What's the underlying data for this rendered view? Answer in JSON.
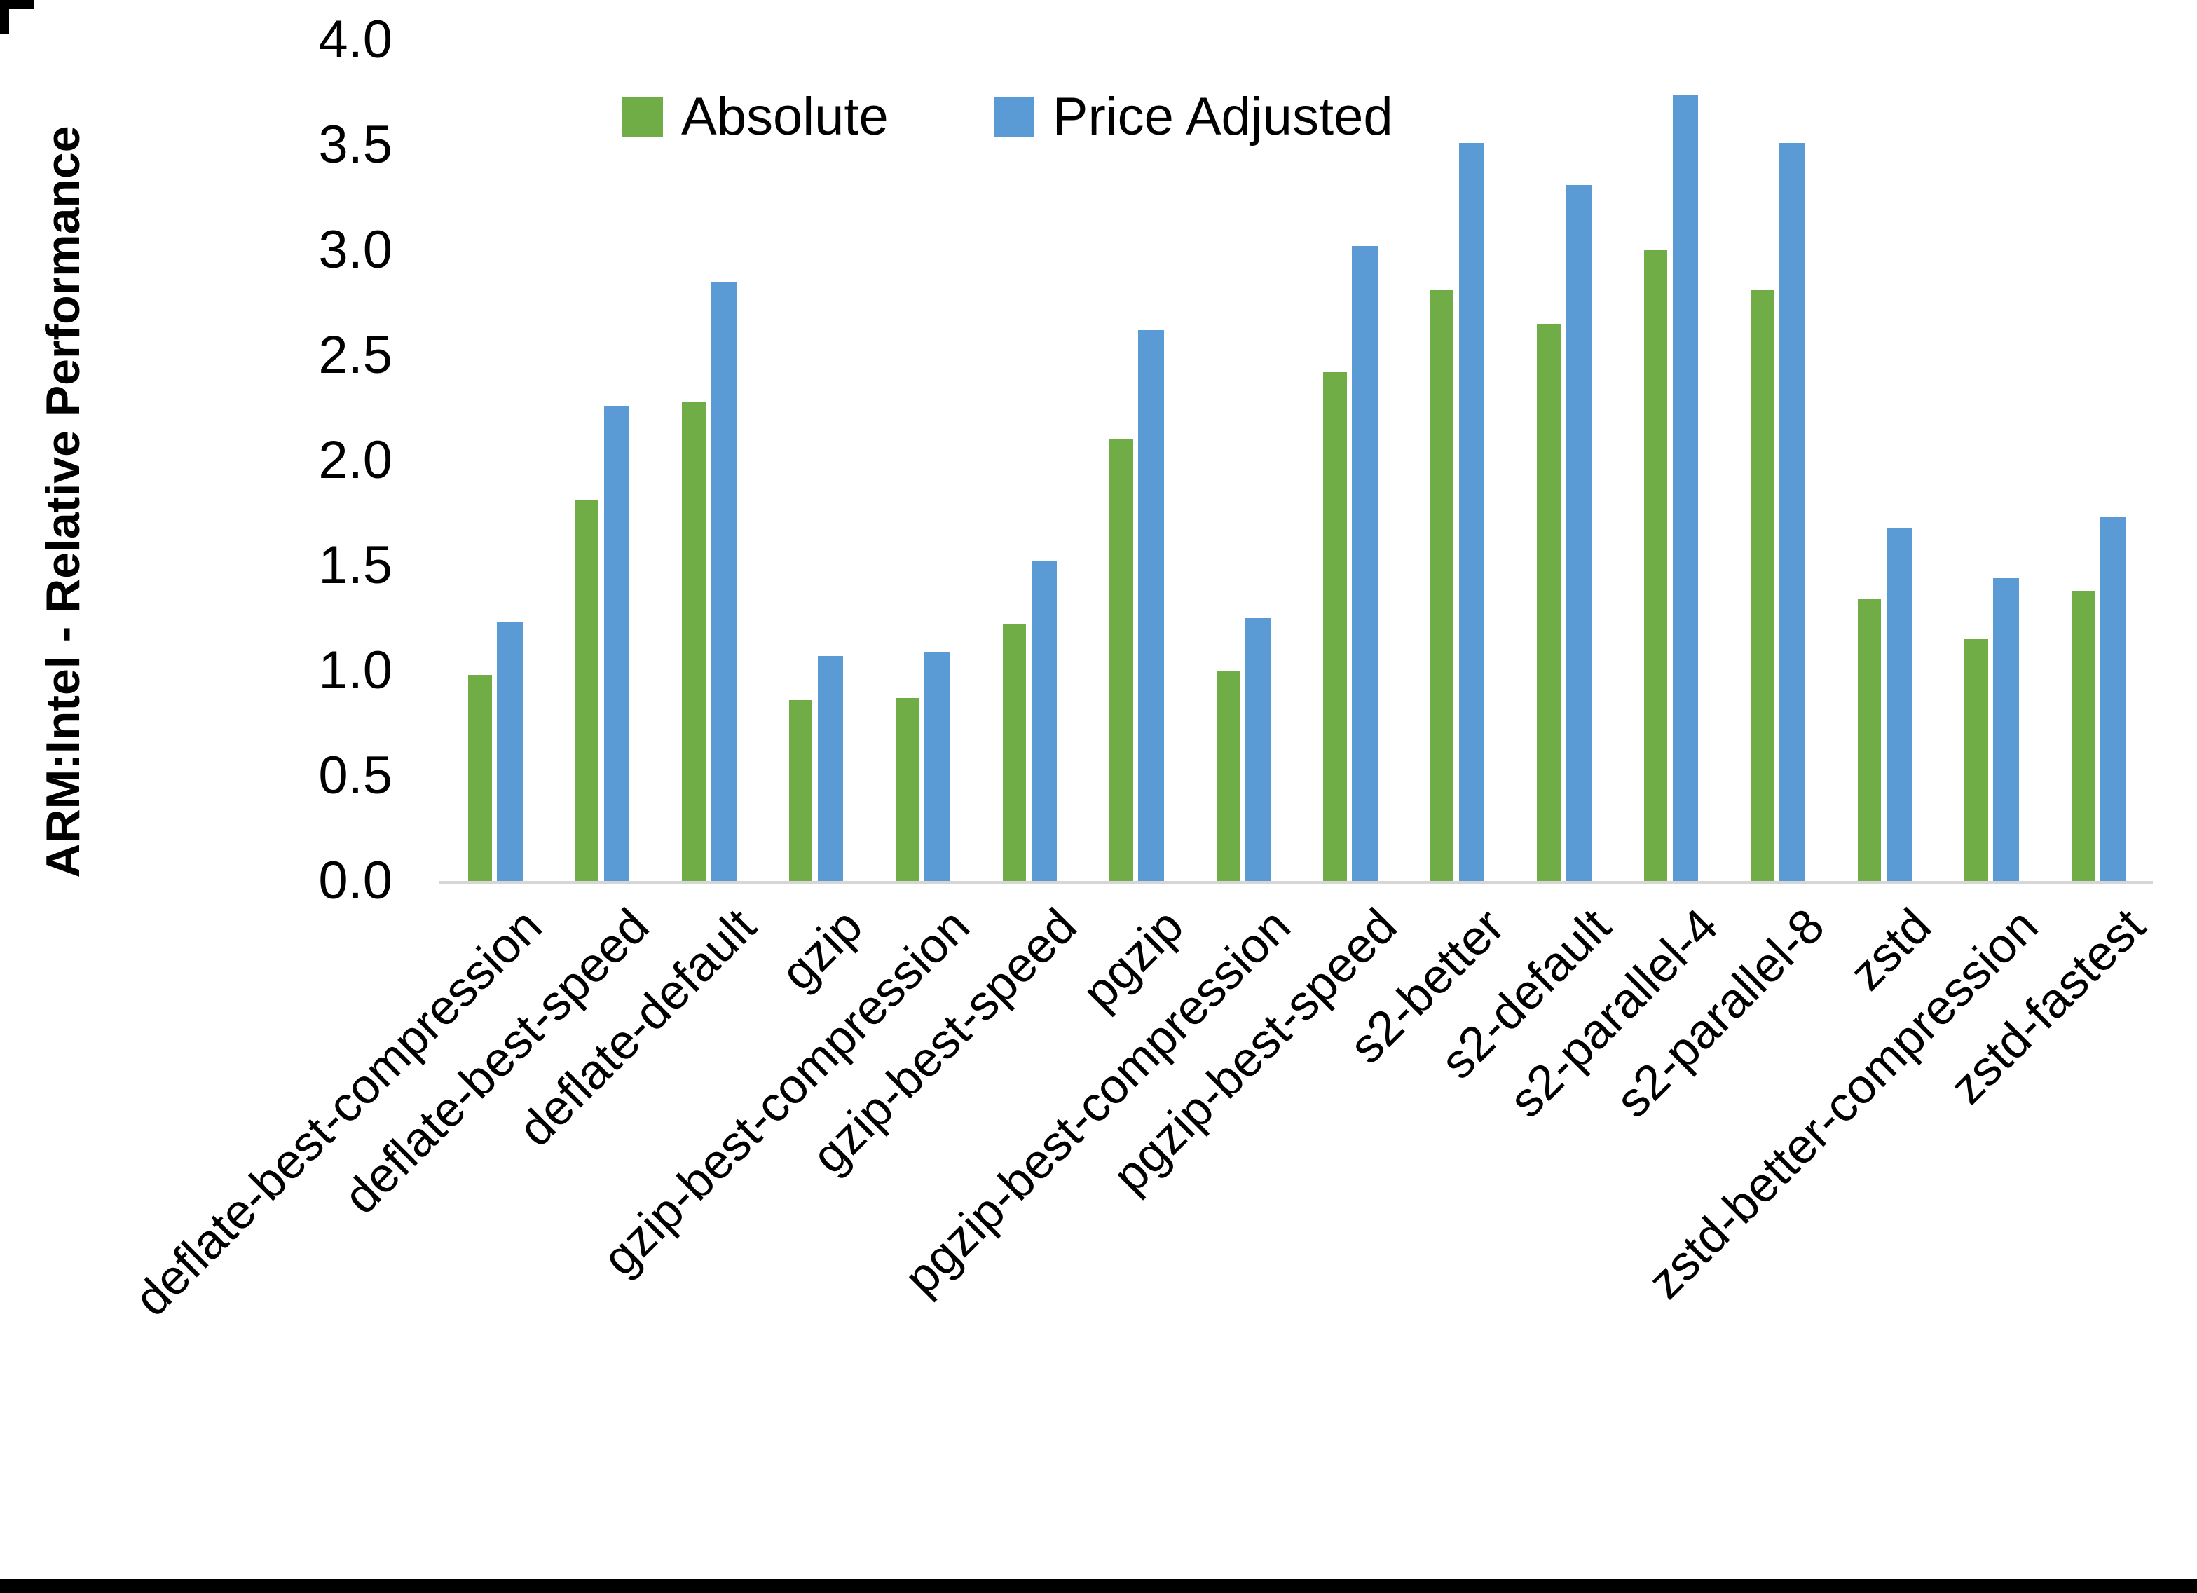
{
  "chart_data": {
    "type": "bar",
    "title": "",
    "xlabel": "",
    "ylabel": "ARM:Intel - Relative Performance",
    "ylim": [
      0.0,
      4.0
    ],
    "ytick_step": 0.5,
    "ytick_labels": [
      "0.0",
      "0.5",
      "1.0",
      "1.5",
      "2.0",
      "2.5",
      "3.0",
      "3.5",
      "4.0"
    ],
    "grid": false,
    "legend_position": "top-center",
    "categories": [
      "deflate-best-compression",
      "deflate-best-speed",
      "deflate-default",
      "gzip",
      "gzip-best-compression",
      "gzip-best-speed",
      "pgzip",
      "pgzip-best-compression",
      "pgzip-best-speed",
      "s2-better",
      "s2-default",
      "s2-parallel-4",
      "s2-parallel-8",
      "zstd",
      "zstd-better-compression",
      "zstd-fastest"
    ],
    "series": [
      {
        "name": "Absolute",
        "color": "#70AD47",
        "values": [
          0.98,
          1.81,
          2.28,
          0.86,
          0.87,
          1.22,
          2.1,
          1.0,
          2.42,
          2.81,
          2.65,
          3.0,
          2.81,
          1.34,
          1.15,
          1.38
        ]
      },
      {
        "name": "Price Adjusted",
        "color": "#5B9BD5",
        "values": [
          1.23,
          2.26,
          2.85,
          1.07,
          1.09,
          1.52,
          2.62,
          1.25,
          3.02,
          3.51,
          3.31,
          3.74,
          3.51,
          1.68,
          1.44,
          1.73
        ]
      }
    ],
    "colors": {
      "absolute": "#70AD47",
      "price_adjusted": "#5B9BD5",
      "axis_line": "#D6D6D6",
      "text": "#000000",
      "frame": "#000000"
    }
  }
}
